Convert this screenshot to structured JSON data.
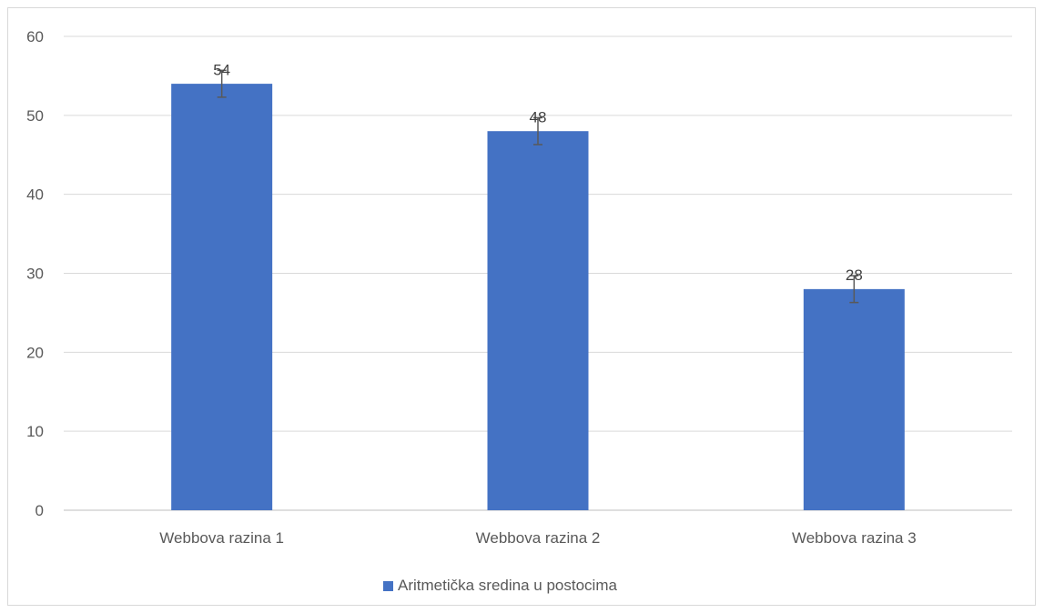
{
  "chart_data": {
    "type": "bar",
    "categories": [
      "Webbova razina 1",
      "Webbova razina 2",
      "Webbova razina 3"
    ],
    "series": [
      {
        "name": "Aritmetička sredina u postocima",
        "values": [
          54,
          48,
          28
        ],
        "error": [
          1.7,
          1.7,
          1.7
        ],
        "color": "#4472C4"
      }
    ],
    "data_labels": [
      "54",
      "48",
      "28"
    ],
    "ylim": [
      0,
      60
    ],
    "yticks": [
      0,
      10,
      20,
      30,
      40,
      50,
      60
    ],
    "grid": true,
    "legend_position": "bottom",
    "title": "",
    "xlabel": "",
    "ylabel": ""
  }
}
